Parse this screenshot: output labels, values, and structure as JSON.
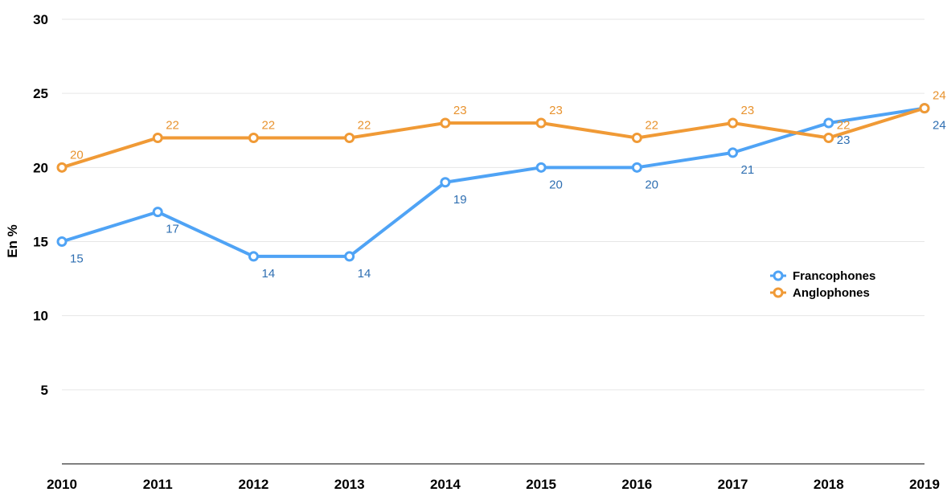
{
  "chart_data": {
    "type": "line",
    "title": "",
    "xlabel": "",
    "ylabel": "En %",
    "ylim": [
      0,
      30
    ],
    "yticks": [
      5,
      10,
      15,
      20,
      25,
      30
    ],
    "grid": true,
    "legend_position": "right",
    "categories": [
      "2010",
      "2011",
      "2012",
      "2013",
      "2014",
      "2015",
      "2016",
      "2017",
      "2018",
      "2019"
    ],
    "series": [
      {
        "name": "Francophones",
        "color": "#4fa3f5",
        "label_color": "#2f6fb2",
        "values": [
          15,
          17,
          14,
          14,
          19,
          20,
          20,
          21,
          23,
          24
        ]
      },
      {
        "name": "Anglophones",
        "color": "#f09a36",
        "label_color": "#e8932f",
        "values": [
          20,
          22,
          22,
          22,
          23,
          23,
          22,
          23,
          22,
          24
        ]
      }
    ]
  }
}
